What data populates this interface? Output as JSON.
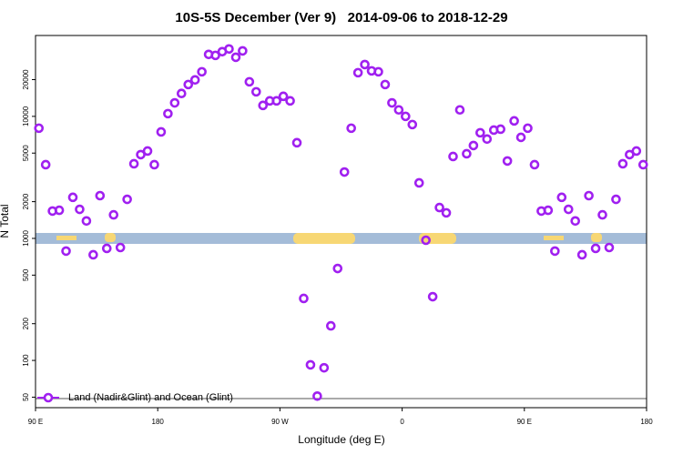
{
  "chart_data": {
    "type": "scatter",
    "title": "10S-5S December (Ver 9)   2014-09-06 to 2018-12-29",
    "x_label": "Longitude (deg E)",
    "y_label": "N Total",
    "log_y": true,
    "legend_position": "bottomleft",
    "xlim": [
      90,
      540
    ],
    "xticks": [
      {
        "value": 90,
        "label": "90 E"
      },
      {
        "value": 180,
        "label": "180"
      },
      {
        "value": 270,
        "label": "90 W"
      },
      {
        "value": 360,
        "label": "0"
      },
      {
        "value": 450,
        "label": "90 E"
      },
      {
        "value": 540,
        "label": "180"
      }
    ],
    "ylim": [
      41,
      46000
    ],
    "yticks": [
      50,
      100,
      200,
      500,
      1000,
      2000,
      5000,
      10000,
      20000
    ],
    "series": [
      {
        "name": "Land (Nadir&Glint) and Ocean (Glint)",
        "color": "#a020f0",
        "x": [
          92.5,
          97.5,
          102.5,
          107.5,
          112.5,
          117.5,
          122.5,
          127.5,
          132.5,
          137.5,
          142.5,
          147.5,
          152.5,
          157.5,
          162.5,
          167.5,
          172.5,
          177.5,
          182.5,
          187.5,
          192.5,
          197.5,
          202.5,
          207.5,
          212.5,
          217.5,
          222.5,
          227.5,
          232.5,
          237.5,
          242.5,
          247.5,
          252.5,
          257.5,
          262.5,
          267.5,
          272.5,
          277.5,
          282.5,
          287.5,
          292.5,
          297.5,
          302.5,
          307.5,
          312.5,
          317.5,
          322.5,
          327.5,
          332.5,
          337.5,
          342.5,
          347.5,
          352.5,
          357.5,
          362.5,
          367.5,
          372.5,
          377.5,
          382.5,
          387.5,
          392.5,
          397.5,
          402.5,
          407.5,
          412.5,
          417.5,
          422.5,
          427.5,
          432.5,
          437.5,
          442.5,
          447.5,
          452.5,
          457.5,
          462.5,
          467.5,
          472.5,
          477.5,
          482.5,
          487.5,
          492.5,
          497.5,
          502.5,
          507.5,
          512.5,
          517.5,
          522.5,
          527.5,
          532.5,
          537.5
        ],
        "values": [
          8000,
          4020,
          1675,
          1700,
          787,
          2170,
          1730,
          1390,
          734,
          2240,
          828,
          1560,
          842,
          2090,
          4090,
          4860,
          5200,
          4020,
          7460,
          10530,
          12900,
          15400,
          18240,
          19900,
          23200,
          32200,
          31600,
          33900,
          35700,
          30500,
          34400,
          19200,
          15900,
          12300,
          13400,
          13400,
          14600,
          13400,
          6080,
          322,
          92,
          51,
          87,
          192,
          567,
          3500,
          8000,
          22800,
          26600,
          23600,
          23200,
          18240,
          12900,
          11300,
          10000,
          8570,
          2850,
          966,
          333,
          1790,
          1620,
          4690,
          11300,
          4940,
          5770,
          7340,
          6520,
          7720,
          7850,
          4310,
          9180,
          6730,
          8000,
          4020,
          1675,
          1700,
          787,
          2170,
          1730,
          1390,
          734,
          2240,
          828,
          1560,
          842,
          2090,
          4090,
          4860,
          5200,
          4020
        ]
      }
    ]
  }
}
